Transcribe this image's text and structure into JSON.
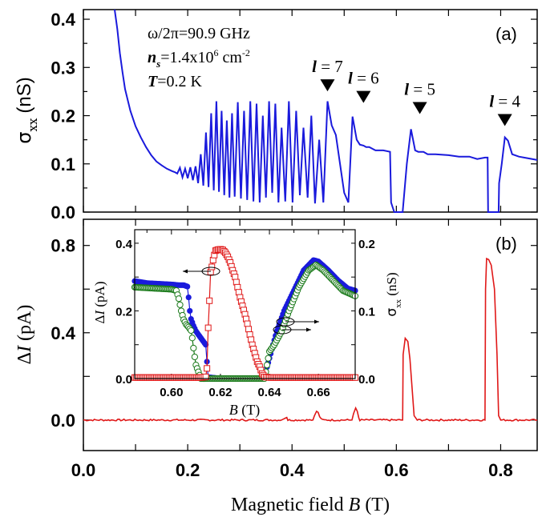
{
  "chart_data": [
    {
      "id": "panel-a",
      "type": "line",
      "panel_label": "(a)",
      "xlabel": "",
      "ylabel": "σxx (nS)",
      "ylabel_main": "σ",
      "ylabel_sub": "xx",
      "ylabel_unit": "(nS)",
      "xlim": [
        0.0,
        0.87
      ],
      "ylim": [
        0.0,
        0.42
      ],
      "yticks": [
        0.0,
        0.1,
        0.2,
        0.3,
        0.4
      ],
      "ytick_labels": [
        "0.0",
        "0.1",
        "0.2",
        "0.3",
        "0.4"
      ],
      "xticks": [
        0.0,
        0.2,
        0.4,
        0.6,
        0.8
      ],
      "color": "#1a1adc",
      "annotations": {
        "lines": [
          "ω/2π=90.9 GHz",
          "ns=1.4x10^6 cm^-2",
          "T=0.2 K"
        ],
        "freq": "ω/2π=90.9 GHz",
        "density_prefix": "n",
        "density_sub": "s",
        "density_value": "=1.4x10",
        "density_exp": "6",
        "density_unit": " cm",
        "density_unit_exp": "-2",
        "temp_var": "T",
        "temp_value": "=0.2 K"
      },
      "markers": [
        {
          "label": "l = 7",
          "var": "l",
          "eq": " = 7",
          "x": 0.468,
          "y": 0.262
        },
        {
          "label": "l = 6",
          "var": "l",
          "eq": " = 6",
          "x": 0.537,
          "y": 0.238
        },
        {
          "label": "l = 5",
          "var": "l",
          "eq": " = 5",
          "x": 0.645,
          "y": 0.215
        },
        {
          "label": "l = 4",
          "var": "l",
          "eq": " = 4",
          "x": 0.808,
          "y": 0.19
        }
      ],
      "series": [
        {
          "name": "sigma_xx",
          "x": [
            0.06,
            0.065,
            0.07,
            0.075,
            0.08,
            0.09,
            0.1,
            0.11,
            0.12,
            0.13,
            0.14,
            0.15,
            0.16,
            0.17,
            0.175,
            0.18,
            0.185,
            0.19,
            0.195,
            0.2,
            0.205,
            0.21,
            0.215,
            0.22,
            0.225,
            0.23,
            0.235,
            0.24,
            0.245,
            0.25,
            0.255,
            0.26,
            0.265,
            0.27,
            0.275,
            0.28,
            0.285,
            0.29,
            0.296,
            0.302,
            0.308,
            0.314,
            0.32,
            0.326,
            0.332,
            0.338,
            0.344,
            0.35,
            0.356,
            0.362,
            0.368,
            0.374,
            0.38,
            0.387,
            0.394,
            0.401,
            0.408,
            0.415,
            0.422,
            0.43,
            0.437,
            0.444,
            0.452,
            0.46,
            0.468,
            0.476,
            0.484,
            0.492,
            0.5,
            0.508,
            0.516,
            0.524,
            0.53,
            0.537,
            0.542,
            0.548,
            0.56,
            0.575,
            0.588,
            0.59,
            0.596,
            0.602,
            0.606,
            0.612,
            0.62,
            0.628,
            0.636,
            0.642,
            0.647,
            0.652,
            0.66,
            0.675,
            0.7,
            0.72,
            0.74,
            0.755,
            0.77,
            0.775,
            0.776,
            0.79,
            0.796,
            0.797,
            0.802,
            0.808,
            0.814,
            0.822,
            0.835,
            0.85,
            0.87
          ],
          "y": [
            0.42,
            0.38,
            0.33,
            0.29,
            0.255,
            0.21,
            0.178,
            0.155,
            0.135,
            0.118,
            0.105,
            0.097,
            0.09,
            0.085,
            0.083,
            0.08,
            0.092,
            0.072,
            0.09,
            0.07,
            0.093,
            0.066,
            0.095,
            0.06,
            0.12,
            0.055,
            0.165,
            0.052,
            0.205,
            0.045,
            0.23,
            0.042,
            0.21,
            0.035,
            0.19,
            0.03,
            0.205,
            0.032,
            0.228,
            0.028,
            0.21,
            0.025,
            0.23,
            0.022,
            0.225,
            0.02,
            0.2,
            0.03,
            0.23,
            0.04,
            0.225,
            0.02,
            0.175,
            0.022,
            0.23,
            0.02,
            0.21,
            0.035,
            0.175,
            0.03,
            0.2,
            0.018,
            0.15,
            0.02,
            0.23,
            0.18,
            0.16,
            0.1,
            0.04,
            0.02,
            0.198,
            0.15,
            0.14,
            0.138,
            0.135,
            0.135,
            0.128,
            0.128,
            0.125,
            0.02,
            0.0,
            0.0,
            0.0,
            0.0,
            0.1,
            0.172,
            0.128,
            0.125,
            0.125,
            0.125,
            0.12,
            0.12,
            0.118,
            0.115,
            0.115,
            0.11,
            0.113,
            0.113,
            0.0,
            0.0,
            0.0,
            0.06,
            0.1,
            0.155,
            0.148,
            0.12,
            0.115,
            0.112,
            0.108
          ]
        }
      ]
    },
    {
      "id": "panel-b",
      "type": "line",
      "panel_label": "(b)",
      "xlabel": "Magnetic field B (T)",
      "xlabel_text": "Magnetic field ",
      "xlabel_var": "B",
      "xlabel_unit": " (T)",
      "ylabel": "ΔI (pA)",
      "ylabel_delta": "Δ",
      "ylabel_var": "I",
      "ylabel_unit": " (pA)",
      "xlim": [
        0.0,
        0.87
      ],
      "ylim": [
        -0.14,
        0.92
      ],
      "xticks": [
        0.0,
        0.2,
        0.4,
        0.6,
        0.8
      ],
      "xtick_labels": [
        "0.0",
        "0.2",
        "0.4",
        "0.6",
        "0.8"
      ],
      "yticks": [
        0.0,
        0.4,
        0.8
      ],
      "ytick_labels": [
        "0.0",
        "0.4",
        "0.8"
      ],
      "color": "#e01818",
      "series": [
        {
          "name": "delta_I",
          "x": [
            0.0,
            0.38,
            0.39,
            0.392,
            0.44,
            0.443,
            0.447,
            0.45,
            0.453,
            0.458,
            0.462,
            0.515,
            0.518,
            0.522,
            0.525,
            0.528,
            0.53,
            0.612,
            0.613,
            0.617,
            0.622,
            0.626,
            0.63,
            0.634,
            0.64,
            0.77,
            0.771,
            0.773,
            0.777,
            0.782,
            0.788,
            0.793,
            0.796,
            0.8,
            0.87
          ],
          "y": [
            0.0,
            0.0,
            0.012,
            0.0,
            0.0,
            0.02,
            0.04,
            0.035,
            0.015,
            0.0,
            0.0,
            0.0,
            0.03,
            0.055,
            0.04,
            0.01,
            0.0,
            0.0,
            0.3,
            0.375,
            0.36,
            0.28,
            0.15,
            0.02,
            0.0,
            0.0,
            0.6,
            0.74,
            0.735,
            0.71,
            0.6,
            0.3,
            0.02,
            0.0,
            0.0
          ]
        }
      ]
    },
    {
      "id": "inset",
      "type": "scatter",
      "xlabel": "B (T)",
      "xlabel_var": "B",
      "xlabel_unit": " (T)",
      "ylabel_left": "ΔI (pA)",
      "ylabel_left_delta": "Δ",
      "ylabel_left_var": "I",
      "ylabel_left_unit": " (pA)",
      "ylabel_right": "σxx (nS)",
      "ylabel_right_main": "σ",
      "ylabel_right_sub": "xx",
      "ylabel_right_unit": " (nS)",
      "xlim": [
        0.585,
        0.675
      ],
      "ylim_left": [
        0.0,
        0.44
      ],
      "ylim_right": [
        0.0,
        0.22
      ],
      "xticks": [
        0.6,
        0.62,
        0.64,
        0.66
      ],
      "xtick_labels": [
        "0.60",
        "0.62",
        "0.64",
        "0.66"
      ],
      "yticks_left": [
        0.0,
        0.2,
        0.4
      ],
      "ytick_labels_left": [
        "0.0",
        "0.2",
        "0.4"
      ],
      "yticks_right": [
        0.0,
        0.1,
        0.2
      ],
      "ytick_labels_right": [
        "0.0",
        "0.1",
        "0.2"
      ],
      "series": [
        {
          "name": "sigma_xx (filled circles)",
          "axis": "right",
          "marker": "filled-circle",
          "color": "#1a1adc",
          "x": [
            0.585,
            0.59,
            0.595,
            0.6,
            0.603,
            0.605,
            0.6065,
            0.607,
            0.6075,
            0.608,
            0.609,
            0.61,
            0.611,
            0.612,
            0.613,
            0.614,
            0.6145,
            0.615,
            0.62,
            0.63,
            0.636,
            0.638,
            0.64,
            0.643,
            0.646,
            0.65,
            0.654,
            0.658,
            0.66,
            0.664,
            0.668,
            0.672,
            0.675
          ],
          "y": [
            0.144,
            0.141,
            0.14,
            0.139,
            0.138,
            0.138,
            0.136,
            0.12,
            0.1,
            0.088,
            0.078,
            0.07,
            0.065,
            0.06,
            0.055,
            0.05,
            0.025,
            0.002,
            0.0,
            0.0,
            0.0,
            0.004,
            0.03,
            0.07,
            0.1,
            0.13,
            0.16,
            0.175,
            0.173,
            0.16,
            0.145,
            0.133,
            0.13
          ]
        },
        {
          "name": "sigma_xx (open circles)",
          "axis": "right",
          "marker": "open-circle",
          "color": "#1a7a1a",
          "x": [
            0.585,
            0.59,
            0.595,
            0.6,
            0.602,
            0.603,
            0.604,
            0.605,
            0.606,
            0.607,
            0.608,
            0.6085,
            0.609,
            0.6095,
            0.61,
            0.611,
            0.612,
            0.62,
            0.63,
            0.636,
            0.638,
            0.639,
            0.64,
            0.642,
            0.645,
            0.648,
            0.652,
            0.656,
            0.659,
            0.662,
            0.666,
            0.67,
            0.675
          ],
          "y": [
            0.135,
            0.134,
            0.133,
            0.132,
            0.13,
            0.118,
            0.1,
            0.087,
            0.08,
            0.076,
            0.071,
            0.06,
            0.045,
            0.032,
            0.02,
            0.01,
            0.0,
            0.0,
            0.0,
            0.0,
            0.0,
            0.02,
            0.04,
            0.05,
            0.07,
            0.1,
            0.135,
            0.16,
            0.168,
            0.16,
            0.145,
            0.13,
            0.122
          ]
        },
        {
          "name": "delta_I (open squares)",
          "axis": "left",
          "marker": "open-square",
          "color": "#e01818",
          "x": [
            0.585,
            0.595,
            0.605,
            0.612,
            0.614,
            0.6145,
            0.615,
            0.6155,
            0.616,
            0.6165,
            0.617,
            0.6175,
            0.618,
            0.619,
            0.62,
            0.621,
            0.622,
            0.623,
            0.624,
            0.625,
            0.626,
            0.627,
            0.628,
            0.629,
            0.63,
            0.631,
            0.632,
            0.633,
            0.634,
            0.635,
            0.636,
            0.637,
            0.6375,
            0.638,
            0.64,
            0.65,
            0.66,
            0.675
          ],
          "y": [
            0.003,
            0.003,
            0.003,
            0.003,
            0.005,
            0.03,
            0.15,
            0.23,
            0.315,
            0.33,
            0.35,
            0.365,
            0.378,
            0.381,
            0.382,
            0.38,
            0.372,
            0.36,
            0.343,
            0.32,
            0.3,
            0.27,
            0.24,
            0.215,
            0.19,
            0.162,
            0.13,
            0.1,
            0.075,
            0.05,
            0.035,
            0.015,
            0.01,
            0.005,
            0.003,
            0.003,
            0.003,
            0.003
          ]
        }
      ],
      "arrows": [
        {
          "direction": "left",
          "axis": "left",
          "series": "delta_I"
        },
        {
          "direction": "right",
          "axis": "right",
          "series": "sigma_xx (filled circles)"
        },
        {
          "direction": "right",
          "axis": "right",
          "series": "sigma_xx (open circles)"
        }
      ]
    }
  ]
}
